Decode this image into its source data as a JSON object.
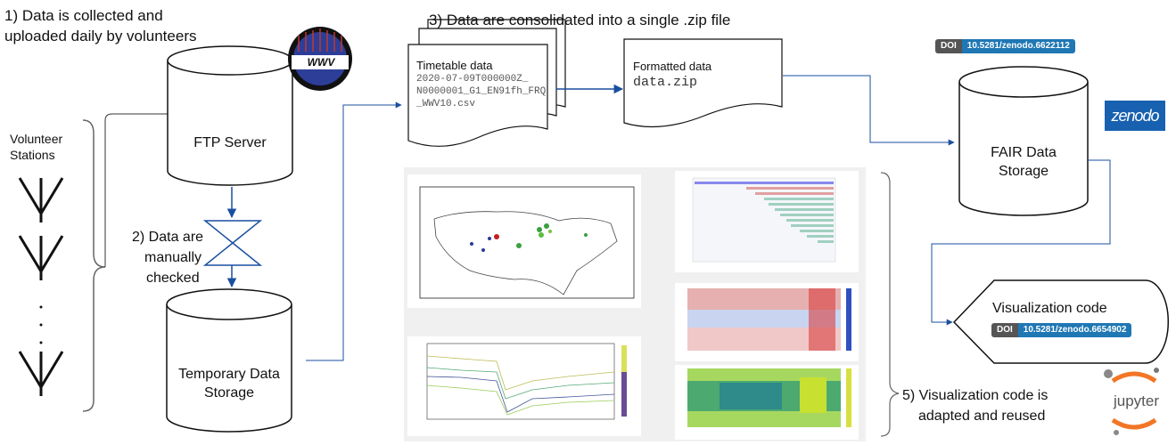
{
  "steps": {
    "step1": [
      "1) Data is collected and",
      "uploaded daily by volunteers"
    ],
    "step2": [
      "2) Data are",
      "manually",
      "checked"
    ],
    "step3": "3) Data are consolidated into a single .zip file",
    "step5": [
      "5) Visualization code is",
      "adapted and reused"
    ]
  },
  "volunteer_label": [
    "Volunteer",
    "Stations"
  ],
  "nodes": {
    "ftp": "FTP Server",
    "temp_storage": [
      "Temporary Data",
      "Storage"
    ],
    "fair_storage": [
      "FAIR Data",
      "Storage"
    ],
    "viz_code": "Visualization code"
  },
  "documents": {
    "timetable_title": "Timetable data",
    "timetable_lines": [
      "2020-07-09T000000Z_",
      "N0000001_G1_EN91fh_FRQ",
      "_WWV10.csv"
    ],
    "formatted_title": "Formatted data",
    "formatted_file": "data.zip"
  },
  "doi_badges": {
    "key": "DOI",
    "data_doi": "10.5281/zenodo.6622112",
    "code_doi": "10.5281/zenodo.6654902"
  },
  "logos": {
    "wwv": "WWV",
    "zenodo": "zenodo",
    "jupyter": "jupyter"
  },
  "icons": [
    "antenna-icon",
    "antenna-icon",
    "antenna-icon",
    "antenna-icon",
    "hourglass-icon"
  ],
  "colors": {
    "zenodo": "#1861b0",
    "doi_value": "#1f77b4",
    "doi_key": "#555555",
    "jupyter": "#f37626"
  }
}
